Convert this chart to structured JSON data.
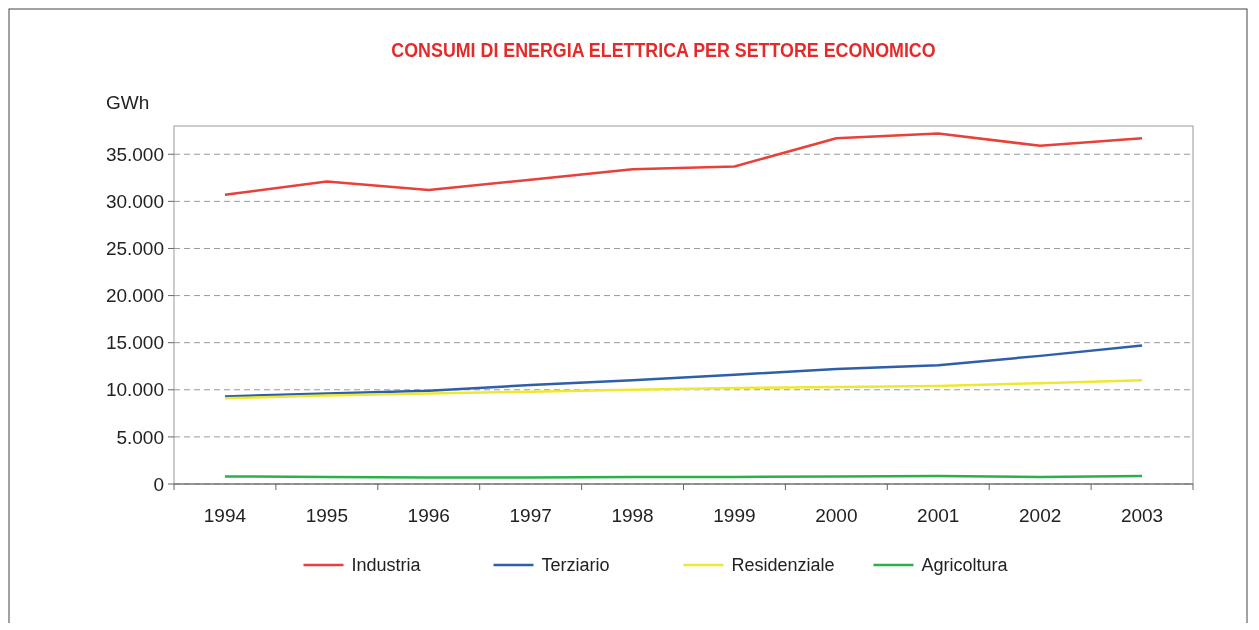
{
  "chart_data": {
    "type": "line",
    "title": "CONSUMI DI ENERGIA ELETTRICA PER SETTORE ECONOMICO",
    "ylabel": "GWh",
    "categories": [
      "1994",
      "1995",
      "1996",
      "1997",
      "1998",
      "1999",
      "2000",
      "2001",
      "2002",
      "2003"
    ],
    "series": [
      {
        "name": "Industria",
        "color": "#e8403a",
        "values": [
          30700,
          32100,
          31200,
          32300,
          33400,
          33700,
          36700,
          37200,
          35900,
          36700
        ]
      },
      {
        "name": "Terziario",
        "color": "#2f5fa8",
        "values": [
          9300,
          9600,
          9900,
          10500,
          11000,
          11600,
          12200,
          12600,
          13600,
          14700
        ]
      },
      {
        "name": "Residenziale",
        "color": "#f0e830",
        "values": [
          9100,
          9400,
          9600,
          9800,
          10000,
          10200,
          10300,
          10400,
          10700,
          11000
        ]
      },
      {
        "name": "Agricoltura",
        "color": "#2db04b",
        "values": [
          800,
          750,
          700,
          700,
          750,
          750,
          800,
          850,
          750,
          850
        ]
      }
    ],
    "ylim": [
      0,
      38000
    ],
    "yticks": [
      {
        "value": 0,
        "label": "0"
      },
      {
        "value": 5000,
        "label": "5.000"
      },
      {
        "value": 10000,
        "label": "10.000"
      },
      {
        "value": 15000,
        "label": "15.000"
      },
      {
        "value": 20000,
        "label": "20.000"
      },
      {
        "value": 25000,
        "label": "25.000"
      },
      {
        "value": 30000,
        "label": "30.000"
      },
      {
        "value": 35000,
        "label": "35.000"
      }
    ],
    "grid": "y",
    "legend": "bottom",
    "line_style": "solid",
    "marker": "none"
  }
}
